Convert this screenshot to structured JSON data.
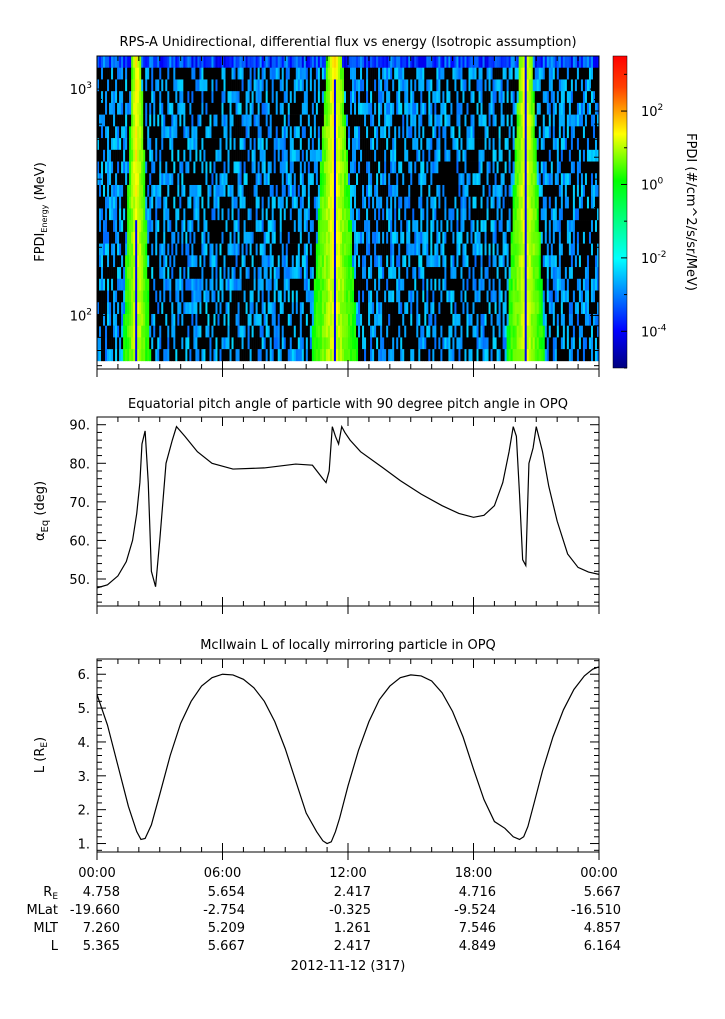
{
  "panels": {
    "spectrogram": {
      "title": "RPS-A Unidirectional, differential flux vs energy (Isotropic assumption)",
      "ylabel_main": "FPDI",
      "ylabel_sub": "Energy",
      "ylabel_unit": " (MeV)",
      "y_ticks": [
        {
          "base": "10",
          "exp": "2",
          "value": 100
        },
        {
          "base": "10",
          "exp": "3",
          "value": 1000
        }
      ],
      "colorbar_label": "FPDI (#/cm^2/s/sr/MeV)",
      "colorbar_ticks": [
        {
          "base": "10",
          "exp": "2",
          "value": 2
        },
        {
          "base": "10",
          "exp": "0",
          "value": 0
        },
        {
          "base": "10",
          "exp": "-2",
          "value": -2
        },
        {
          "base": "10",
          "exp": "-4",
          "value": -4
        }
      ]
    },
    "pitch": {
      "title": "Equatorial pitch angle of particle with 90 degree pitch angle in OPQ",
      "ylabel_main": "α",
      "ylabel_sub": "Eq",
      "ylabel_unit": " (deg)",
      "y_ticks": [
        "50.",
        "60.",
        "70.",
        "80.",
        "90."
      ]
    },
    "lshell": {
      "title": "McIlwain L of locally mirroring particle in OPQ",
      "ylabel_main": "L (R",
      "ylabel_sub": "E",
      "ylabel_unit": ")",
      "y_ticks": [
        "1.",
        "2.",
        "3.",
        "4.",
        "5.",
        "6."
      ]
    }
  },
  "time_axis": {
    "ticks": [
      "00:00",
      "06:00",
      "12:00",
      "18:00",
      "00:00"
    ],
    "date_label": "2012-11-12 (317)"
  },
  "ephemeris": {
    "row_labels": [
      {
        "main": "R",
        "sub": "E"
      },
      {
        "main": "MLat",
        "sub": ""
      },
      {
        "main": "MLT",
        "sub": ""
      },
      {
        "main": "L",
        "sub": ""
      }
    ],
    "rows": [
      [
        "4.758",
        "5.654",
        "2.417",
        "4.716",
        "5.667"
      ],
      [
        "-19.660",
        "-2.754",
        "-0.325",
        "-9.524",
        "-16.510"
      ],
      [
        "7.260",
        "5.209",
        "1.261",
        "7.546",
        "4.857"
      ],
      [
        "5.365",
        "5.667",
        "2.417",
        "4.849",
        "6.164"
      ]
    ]
  },
  "chart_data": [
    {
      "type": "heatmap",
      "title": "RPS-A Unidirectional, differential flux vs energy (Isotropic assumption)",
      "xlabel": "",
      "ylabel": "FPDI Energy (MeV)",
      "x_range_hours": [
        0,
        24
      ],
      "y_range_mev": [
        58,
        1400
      ],
      "y_scale": "log",
      "colorbar_range_log10": [
        -5,
        3.5
      ],
      "high_flux_bands_hours": [
        [
          1.4,
          2.4
        ],
        [
          10.5,
          12.2
        ],
        [
          19.8,
          21.2
        ]
      ],
      "background_log10": -3.5
    },
    {
      "type": "line",
      "title": "Equatorial pitch angle of particle with 90 degree pitch angle in OPQ",
      "xlabel": "",
      "ylabel": "αEq (deg)",
      "ylim": [
        43,
        92
      ],
      "x_hours": [
        0,
        0.5,
        1.0,
        1.4,
        1.7,
        1.9,
        2.05,
        2.15,
        2.3,
        2.45,
        2.6,
        2.8,
        3.0,
        3.3,
        3.6,
        3.8,
        4.2,
        4.8,
        5.5,
        6.5,
        8.0,
        9.5,
        10.3,
        10.8,
        10.95,
        11.1,
        11.25,
        11.4,
        11.55,
        11.7,
        11.85,
        12.1,
        12.6,
        13.5,
        14.5,
        15.5,
        16.5,
        17.3,
        18.0,
        18.5,
        19.0,
        19.4,
        19.7,
        19.9,
        20.05,
        20.2,
        20.35,
        20.5,
        20.65,
        20.85,
        21.0,
        21.3,
        21.6,
        22.0,
        22.5,
        23.0,
        23.5,
        24.0
      ],
      "y_deg": [
        47.7,
        48.5,
        50.8,
        54.5,
        60,
        67,
        75,
        85,
        88.4,
        75,
        52,
        48,
        60,
        80,
        86,
        89.5,
        87,
        83,
        80,
        78.5,
        78.8,
        79.8,
        79.5,
        76,
        75,
        78,
        89.5,
        87,
        85,
        89.5,
        88,
        86,
        83,
        79.5,
        75.5,
        72,
        69,
        67,
        66,
        66.5,
        69,
        75,
        83,
        89.5,
        87,
        72,
        55,
        53.5,
        80,
        84,
        89.5,
        83,
        74,
        65,
        56.5,
        53,
        51.8,
        51.2
      ]
    },
    {
      "type": "line",
      "title": "McIlwain L of locally mirroring particle in OPQ",
      "xlabel": "",
      "ylabel": "L (RE)",
      "ylim": [
        0.75,
        6.45
      ],
      "x_hours": [
        0,
        0.5,
        1.0,
        1.5,
        1.9,
        2.1,
        2.3,
        2.6,
        3.0,
        3.5,
        4.0,
        4.5,
        5.0,
        5.5,
        6.0,
        6.5,
        7.0,
        7.5,
        8.0,
        8.5,
        9.0,
        9.5,
        10.0,
        10.5,
        10.8,
        11.0,
        11.2,
        11.4,
        11.6,
        12.0,
        12.5,
        13.0,
        13.5,
        14.0,
        14.5,
        15.0,
        15.5,
        16.0,
        16.5,
        17.0,
        17.5,
        18.0,
        18.5,
        19.0,
        19.5,
        19.9,
        20.2,
        20.4,
        20.6,
        20.9,
        21.3,
        21.8,
        22.3,
        22.8,
        23.3,
        23.7,
        24.0
      ],
      "y_re": [
        5.4,
        4.5,
        3.3,
        2.1,
        1.35,
        1.12,
        1.15,
        1.55,
        2.45,
        3.6,
        4.55,
        5.2,
        5.65,
        5.9,
        6.0,
        5.98,
        5.85,
        5.6,
        5.2,
        4.6,
        3.8,
        2.85,
        1.9,
        1.35,
        1.08,
        1.0,
        1.05,
        1.35,
        1.75,
        2.7,
        3.75,
        4.6,
        5.25,
        5.65,
        5.9,
        5.98,
        5.95,
        5.8,
        5.45,
        4.9,
        4.15,
        3.2,
        2.3,
        1.65,
        1.45,
        1.2,
        1.12,
        1.2,
        1.5,
        2.2,
        3.15,
        4.15,
        4.95,
        5.55,
        5.95,
        6.15,
        6.22
      ]
    }
  ]
}
